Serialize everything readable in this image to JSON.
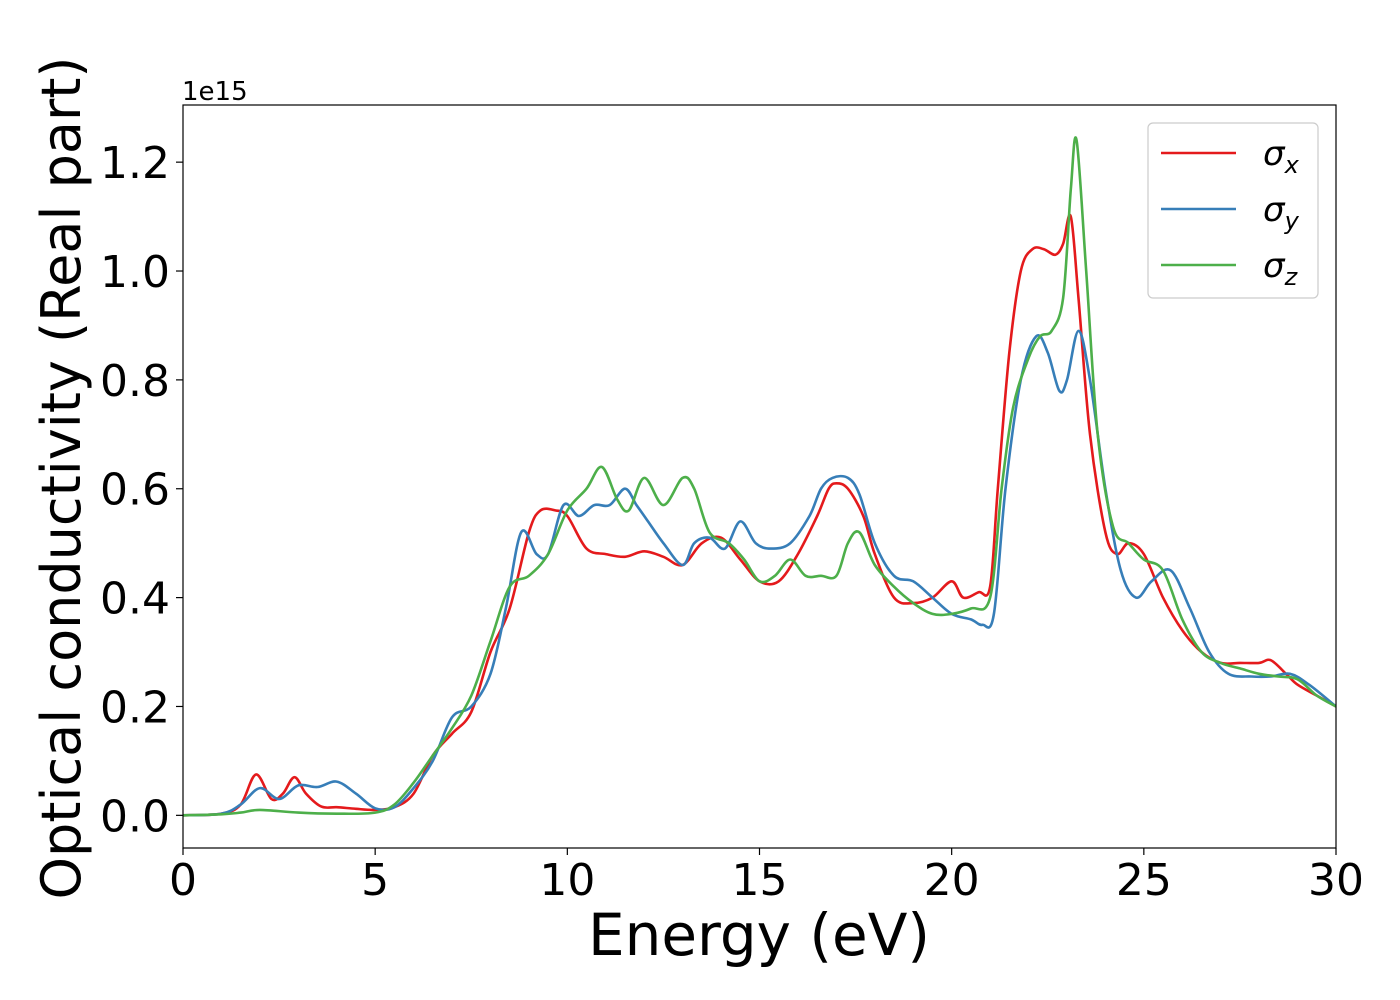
{
  "chart_data": {
    "type": "line",
    "xlabel": "Energy (eV)",
    "ylabel": "Optical conductivity (Real part)",
    "offset_label": "1e15",
    "xlim": [
      0,
      30
    ],
    "ylim": [
      -0.06,
      1.305
    ],
    "xticks": [
      0,
      5,
      10,
      15,
      20,
      25,
      30
    ],
    "xtick_labels": [
      "0",
      "5",
      "10",
      "15",
      "20",
      "25",
      "30"
    ],
    "yticks": [
      0.0,
      0.2,
      0.4,
      0.6,
      0.8,
      1.0,
      1.2
    ],
    "ytick_labels": [
      "0.0",
      "0.2",
      "0.4",
      "0.6",
      "0.8",
      "1.0",
      "1.2"
    ],
    "grid": false,
    "legend_position": "top-right",
    "series": [
      {
        "name": "σx",
        "legend": {
          "base": "σ",
          "sub": "x"
        },
        "color": "#e41a1c",
        "x": [
          0,
          1.0,
          1.5,
          1.9,
          2.3,
          2.6,
          2.9,
          3.2,
          3.6,
          4.0,
          4.5,
          5.0,
          5.5,
          6.0,
          6.5,
          7.0,
          7.5,
          8.0,
          8.5,
          9.0,
          9.3,
          9.7,
          10.0,
          10.5,
          11.0,
          11.5,
          12.0,
          12.5,
          13.0,
          13.5,
          14.0,
          14.5,
          15.0,
          15.5,
          16.0,
          16.5,
          16.8,
          17.0,
          17.3,
          17.7,
          18.0,
          18.5,
          19.0,
          19.5,
          20.0,
          20.3,
          20.7,
          21.0,
          21.2,
          21.5,
          21.8,
          22.1,
          22.4,
          22.7,
          22.9,
          23.1,
          23.3,
          23.6,
          24.0,
          24.3,
          24.6,
          25.0,
          25.5,
          26.0,
          26.5,
          27.0,
          27.5,
          28.0,
          28.3,
          28.7,
          29.0,
          29.5,
          30.0
        ],
        "y": [
          0,
          0.003,
          0.02,
          0.075,
          0.03,
          0.04,
          0.07,
          0.04,
          0.016,
          0.015,
          0.012,
          0.01,
          0.015,
          0.04,
          0.11,
          0.15,
          0.19,
          0.3,
          0.38,
          0.52,
          0.56,
          0.56,
          0.55,
          0.49,
          0.48,
          0.475,
          0.485,
          0.475,
          0.46,
          0.5,
          0.51,
          0.47,
          0.43,
          0.43,
          0.48,
          0.55,
          0.6,
          0.61,
          0.6,
          0.55,
          0.48,
          0.4,
          0.39,
          0.4,
          0.43,
          0.4,
          0.41,
          0.42,
          0.6,
          0.85,
          1.0,
          1.04,
          1.04,
          1.03,
          1.05,
          1.1,
          0.95,
          0.7,
          0.52,
          0.48,
          0.5,
          0.48,
          0.4,
          0.34,
          0.3,
          0.28,
          0.28,
          0.28,
          0.285,
          0.26,
          0.24,
          0.22,
          0.2
        ]
      },
      {
        "name": "σy",
        "legend": {
          "base": "σ",
          "sub": "y"
        },
        "color": "#377eb8",
        "x": [
          0,
          1.0,
          1.5,
          2.0,
          2.5,
          3.0,
          3.5,
          4.0,
          4.5,
          5.0,
          5.5,
          6.0,
          6.5,
          7.0,
          7.5,
          8.0,
          8.4,
          8.8,
          9.2,
          9.5,
          9.9,
          10.3,
          10.7,
          11.1,
          11.5,
          11.8,
          12.1,
          12.5,
          13.0,
          13.3,
          13.7,
          14.1,
          14.5,
          14.9,
          15.3,
          15.8,
          16.3,
          16.6,
          16.9,
          17.3,
          17.6,
          18.0,
          18.5,
          19.0,
          19.5,
          20.0,
          20.5,
          20.8,
          21.1,
          21.4,
          21.8,
          22.2,
          22.5,
          22.8,
          23.0,
          23.3,
          23.6,
          24.0,
          24.4,
          24.8,
          25.2,
          25.7,
          26.2,
          26.7,
          27.2,
          27.8,
          28.3,
          28.8,
          29.3,
          30.0
        ],
        "y": [
          0,
          0.003,
          0.02,
          0.05,
          0.03,
          0.055,
          0.052,
          0.062,
          0.04,
          0.013,
          0.015,
          0.05,
          0.1,
          0.18,
          0.2,
          0.26,
          0.38,
          0.52,
          0.48,
          0.48,
          0.57,
          0.55,
          0.57,
          0.57,
          0.6,
          0.57,
          0.54,
          0.5,
          0.46,
          0.5,
          0.51,
          0.49,
          0.54,
          0.5,
          0.49,
          0.5,
          0.55,
          0.6,
          0.62,
          0.62,
          0.59,
          0.5,
          0.44,
          0.43,
          0.4,
          0.37,
          0.36,
          0.35,
          0.37,
          0.6,
          0.8,
          0.88,
          0.85,
          0.78,
          0.8,
          0.89,
          0.8,
          0.6,
          0.45,
          0.4,
          0.43,
          0.45,
          0.38,
          0.3,
          0.26,
          0.255,
          0.255,
          0.26,
          0.24,
          0.2
        ]
      },
      {
        "name": "σz",
        "legend": {
          "base": "σ",
          "sub": "z"
        },
        "color": "#4daf4a",
        "x": [
          0,
          1.0,
          1.5,
          2.0,
          3.0,
          4.0,
          5.0,
          5.5,
          6.0,
          6.5,
          7.0,
          7.5,
          8.0,
          8.5,
          9.0,
          9.5,
          10.0,
          10.5,
          10.9,
          11.3,
          11.6,
          12.0,
          12.5,
          13.0,
          13.3,
          13.7,
          14.2,
          14.6,
          15.0,
          15.4,
          15.8,
          16.2,
          16.6,
          17.0,
          17.3,
          17.6,
          18.0,
          18.5,
          19.0,
          19.5,
          20.0,
          20.5,
          21.0,
          21.3,
          21.6,
          22.0,
          22.3,
          22.6,
          22.9,
          23.1,
          23.25,
          23.5,
          23.8,
          24.2,
          24.6,
          25.0,
          25.5,
          26.0,
          26.5,
          27.0,
          27.5,
          28.0,
          28.5,
          29.0,
          29.5,
          30.0
        ],
        "y": [
          0,
          0.002,
          0.005,
          0.01,
          0.005,
          0.003,
          0.005,
          0.02,
          0.06,
          0.11,
          0.16,
          0.22,
          0.32,
          0.42,
          0.44,
          0.48,
          0.56,
          0.6,
          0.64,
          0.58,
          0.56,
          0.62,
          0.57,
          0.62,
          0.6,
          0.52,
          0.5,
          0.47,
          0.43,
          0.44,
          0.47,
          0.44,
          0.44,
          0.44,
          0.5,
          0.52,
          0.46,
          0.42,
          0.39,
          0.37,
          0.37,
          0.38,
          0.4,
          0.6,
          0.75,
          0.84,
          0.88,
          0.89,
          0.95,
          1.15,
          1.24,
          1.0,
          0.7,
          0.53,
          0.5,
          0.47,
          0.45,
          0.36,
          0.3,
          0.28,
          0.27,
          0.26,
          0.255,
          0.25,
          0.22,
          0.2
        ]
      }
    ]
  }
}
